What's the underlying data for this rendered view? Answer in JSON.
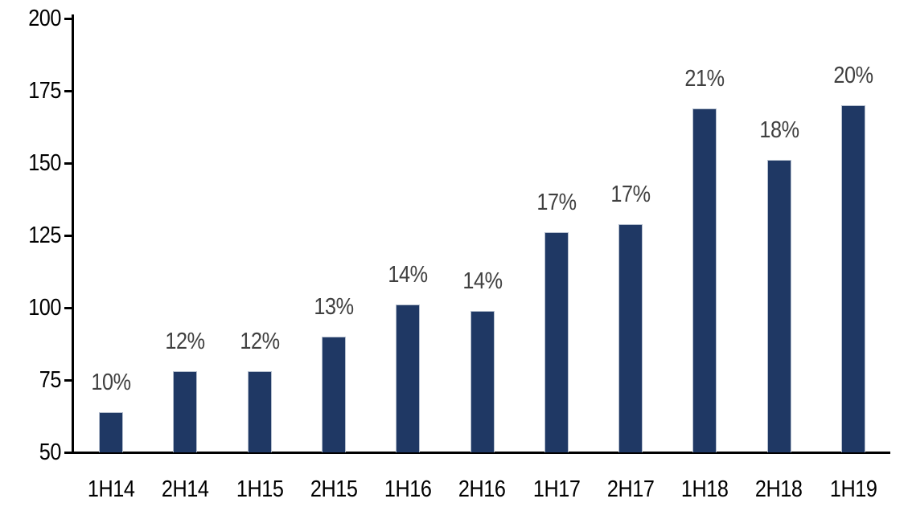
{
  "chart_data": {
    "type": "bar",
    "title": "",
    "xlabel": "",
    "ylabel": "",
    "categories": [
      "1H14",
      "2H14",
      "1H15",
      "2H15",
      "1H16",
      "2H16",
      "1H17",
      "2H17",
      "1H18",
      "2H18",
      "1H19"
    ],
    "values": [
      64,
      78,
      78,
      90,
      101,
      99,
      126,
      129,
      169,
      151,
      170
    ],
    "bar_labels": [
      "10%",
      "12%",
      "12%",
      "13%",
      "14%",
      "14%",
      "17%",
      "17%",
      "21%",
      "18%",
      "20%"
    ],
    "ylim": [
      50,
      200
    ],
    "yticks": [
      50,
      75,
      100,
      125,
      150,
      175,
      200
    ],
    "grid": false,
    "legend": false,
    "colors": {
      "bar_fill": "#1F3864",
      "bar_border": "#b6c0cf",
      "data_label": "#404040",
      "axis_text": "#000000",
      "axis_line": "#000000",
      "background": "#ffffff"
    }
  }
}
